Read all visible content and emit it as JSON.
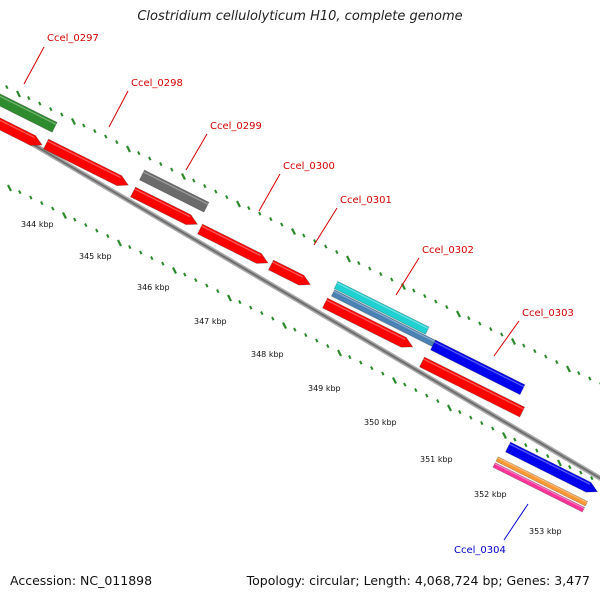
{
  "title": "Clostridium cellulolyticum H10, complete genome",
  "accession_label": "Accession: NC_011898",
  "summary_label": "Topology: circular; Length: 4,068,724 bp; Genes: 3,477",
  "colors": {
    "backbone": "#8c8c8c",
    "tick": "#2a8a2a",
    "label_red": "#d40000",
    "label_blue": "#0000cc"
  },
  "kbp_labels": [
    "344 kbp",
    "345 kbp",
    "346 kbp",
    "347 kbp",
    "348 kbp",
    "349 kbp",
    "350 kbp",
    "351 kbp",
    "352 kbp",
    "353 kbp"
  ],
  "genes": [
    {
      "id": "Ccel_0297",
      "color": "#d40000"
    },
    {
      "id": "Ccel_0298",
      "color": "#d40000"
    },
    {
      "id": "Ccel_0299",
      "color": "#d40000"
    },
    {
      "id": "Ccel_0300",
      "color": "#d40000"
    },
    {
      "id": "Ccel_0301",
      "color": "#d40000"
    },
    {
      "id": "Ccel_0302",
      "color": "#d40000"
    },
    {
      "id": "Ccel_0303",
      "color": "#d40000"
    },
    {
      "id": "Ccel_0304",
      "color": "#0000cc"
    }
  ],
  "feature_colors": {
    "red": "#ff0000",
    "green": "#2e8b2e",
    "gray": "#6b6b6b",
    "cyan": "#1fd1d1",
    "steel": "#4a82b4",
    "blue": "#0000ee",
    "orange": "#ff9933",
    "pink": "#ff3399"
  }
}
